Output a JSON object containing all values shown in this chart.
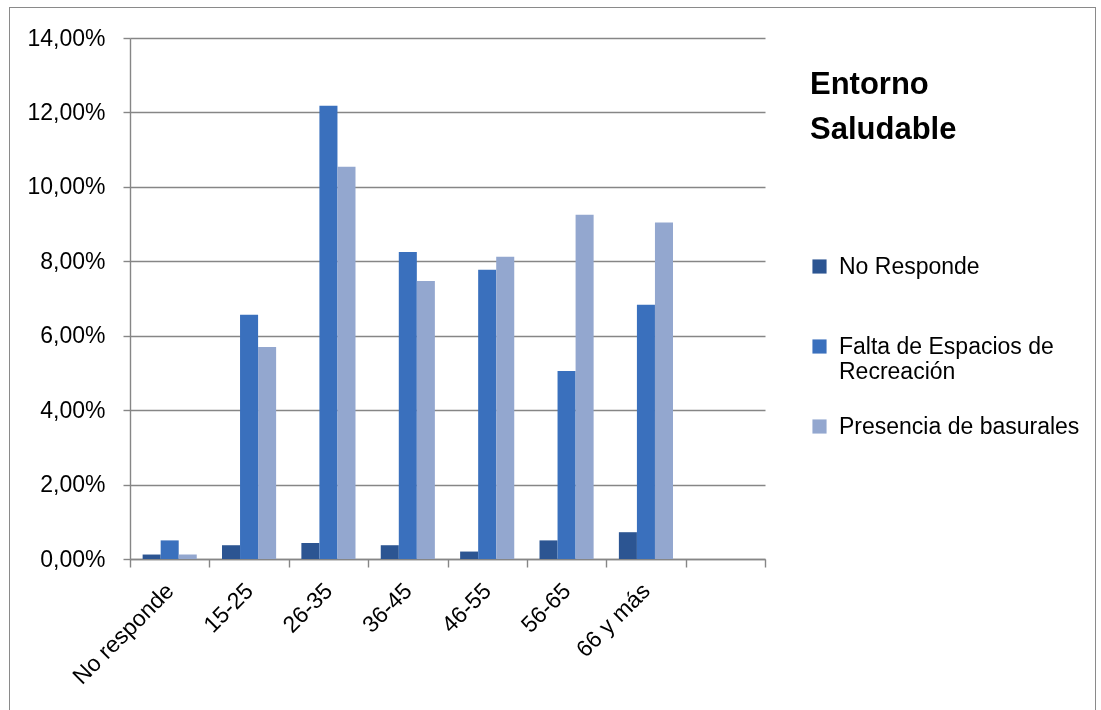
{
  "chart_data": {
    "type": "bar",
    "title": "Entorno Saludable",
    "categories": [
      "No responde",
      "15-25",
      "26-35",
      "36-45",
      "46-55",
      "56-65",
      "66 y más",
      null
    ],
    "series": [
      {
        "name": "No Responde",
        "color": "#2c5592",
        "values": [
          0.12,
          0.37,
          0.43,
          0.37,
          0.2,
          0.5,
          0.72,
          null
        ]
      },
      {
        "name": "Falta de Espacios de Recreación",
        "color": "#3a70bd",
        "values": [
          0.5,
          6.56,
          12.18,
          8.25,
          7.77,
          5.05,
          6.83,
          null
        ]
      },
      {
        "name": "Presencia de basurales",
        "color": "#93a7cf",
        "values": [
          0.12,
          5.7,
          10.54,
          7.47,
          8.12,
          9.25,
          9.04,
          null
        ]
      }
    ],
    "ylim": [
      0,
      14
    ],
    "yticks": [
      {
        "value": 0,
        "label": "0,00%"
      },
      {
        "value": 2,
        "label": "2,00%"
      },
      {
        "value": 4,
        "label": "4,00%"
      },
      {
        "value": 6,
        "label": "6,00%"
      },
      {
        "value": 8,
        "label": "8,00%"
      },
      {
        "value": 10,
        "label": "10,00%"
      },
      {
        "value": 12,
        "label": "12,00%"
      },
      {
        "value": 14,
        "label": "14,00%"
      }
    ],
    "grid": "y",
    "legend": "right"
  }
}
